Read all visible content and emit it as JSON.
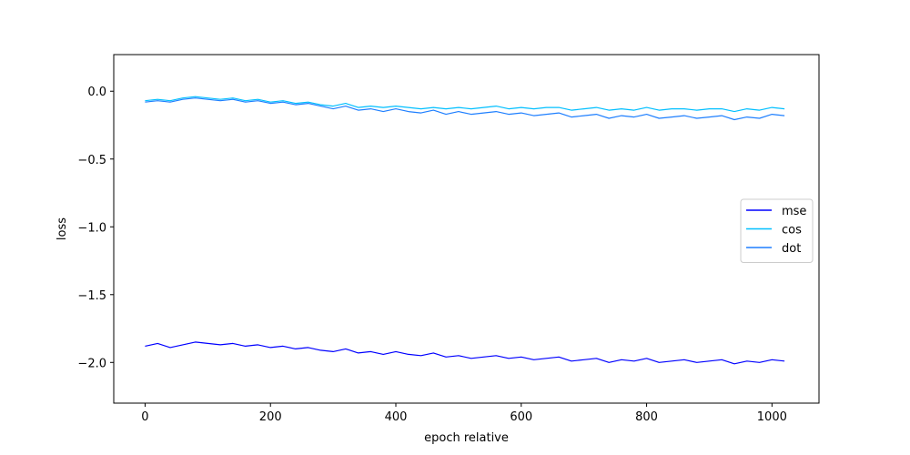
{
  "chart_data": {
    "type": "line",
    "title": "",
    "xlabel": "epoch relative",
    "ylabel": "loss",
    "xlim": [
      -50,
      1075
    ],
    "ylim": [
      -2.3,
      0.27
    ],
    "xticks": [
      0,
      200,
      400,
      600,
      800,
      1000
    ],
    "xtick_labels": [
      "0",
      "200",
      "400",
      "600",
      "800",
      "1000"
    ],
    "yticks": [
      0.0,
      -0.5,
      -1.0,
      -1.5,
      -2.0
    ],
    "ytick_labels": [
      "0.0",
      "−0.5",
      "−1.0",
      "−1.5",
      "−2.0"
    ],
    "grid": false,
    "legend_position": "center-right",
    "series": [
      {
        "name": "mse",
        "color": "#0000ff",
        "x": [
          0,
          20,
          40,
          60,
          80,
          100,
          120,
          140,
          160,
          180,
          200,
          220,
          240,
          260,
          280,
          300,
          320,
          340,
          360,
          380,
          400,
          420,
          440,
          460,
          480,
          500,
          520,
          540,
          560,
          580,
          600,
          620,
          640,
          660,
          680,
          700,
          720,
          740,
          760,
          780,
          800,
          820,
          840,
          860,
          880,
          900,
          920,
          940,
          960,
          980,
          1000,
          1020
        ],
        "y": [
          -1.88,
          -1.86,
          -1.89,
          -1.87,
          -1.85,
          -1.86,
          -1.87,
          -1.86,
          -1.88,
          -1.87,
          -1.89,
          -1.88,
          -1.9,
          -1.89,
          -1.91,
          -1.92,
          -1.9,
          -1.93,
          -1.92,
          -1.94,
          -1.92,
          -1.94,
          -1.95,
          -1.93,
          -1.96,
          -1.95,
          -1.97,
          -1.96,
          -1.95,
          -1.97,
          -1.96,
          -1.98,
          -1.97,
          -1.96,
          -1.99,
          -1.98,
          -1.97,
          -2.0,
          -1.98,
          -1.99,
          -1.97,
          -2.0,
          -1.99,
          -1.98,
          -2.0,
          -1.99,
          -1.98,
          -2.01,
          -1.99,
          -2.0,
          -1.98,
          -1.99
        ]
      },
      {
        "name": "cos",
        "color": "#00bfff",
        "x": [
          0,
          20,
          40,
          60,
          80,
          100,
          120,
          140,
          160,
          180,
          200,
          220,
          240,
          260,
          280,
          300,
          320,
          340,
          360,
          380,
          400,
          420,
          440,
          460,
          480,
          500,
          520,
          540,
          560,
          580,
          600,
          620,
          640,
          660,
          680,
          700,
          720,
          740,
          760,
          780,
          800,
          820,
          840,
          860,
          880,
          900,
          920,
          940,
          960,
          980,
          1000,
          1020
        ],
        "y": [
          -0.07,
          -0.06,
          -0.07,
          -0.05,
          -0.04,
          -0.05,
          -0.06,
          -0.05,
          -0.07,
          -0.06,
          -0.08,
          -0.07,
          -0.09,
          -0.08,
          -0.1,
          -0.11,
          -0.09,
          -0.12,
          -0.11,
          -0.12,
          -0.11,
          -0.12,
          -0.13,
          -0.12,
          -0.13,
          -0.12,
          -0.13,
          -0.12,
          -0.11,
          -0.13,
          -0.12,
          -0.13,
          -0.12,
          -0.12,
          -0.14,
          -0.13,
          -0.12,
          -0.14,
          -0.13,
          -0.14,
          -0.12,
          -0.14,
          -0.13,
          -0.13,
          -0.14,
          -0.13,
          -0.13,
          -0.15,
          -0.13,
          -0.14,
          -0.12,
          -0.13
        ]
      },
      {
        "name": "dot",
        "color": "#1e7fff",
        "x": [
          0,
          20,
          40,
          60,
          80,
          100,
          120,
          140,
          160,
          180,
          200,
          220,
          240,
          260,
          280,
          300,
          320,
          340,
          360,
          380,
          400,
          420,
          440,
          460,
          480,
          500,
          520,
          540,
          560,
          580,
          600,
          620,
          640,
          660,
          680,
          700,
          720,
          740,
          760,
          780,
          800,
          820,
          840,
          860,
          880,
          900,
          920,
          940,
          960,
          980,
          1000,
          1020
        ],
        "y": [
          -0.08,
          -0.07,
          -0.08,
          -0.06,
          -0.05,
          -0.06,
          -0.07,
          -0.06,
          -0.08,
          -0.07,
          -0.09,
          -0.08,
          -0.1,
          -0.09,
          -0.11,
          -0.13,
          -0.11,
          -0.14,
          -0.13,
          -0.15,
          -0.13,
          -0.15,
          -0.16,
          -0.14,
          -0.17,
          -0.15,
          -0.17,
          -0.16,
          -0.15,
          -0.17,
          -0.16,
          -0.18,
          -0.17,
          -0.16,
          -0.19,
          -0.18,
          -0.17,
          -0.2,
          -0.18,
          -0.19,
          -0.17,
          -0.2,
          -0.19,
          -0.18,
          -0.2,
          -0.19,
          -0.18,
          -0.21,
          -0.19,
          -0.2,
          -0.17,
          -0.18
        ]
      }
    ]
  }
}
